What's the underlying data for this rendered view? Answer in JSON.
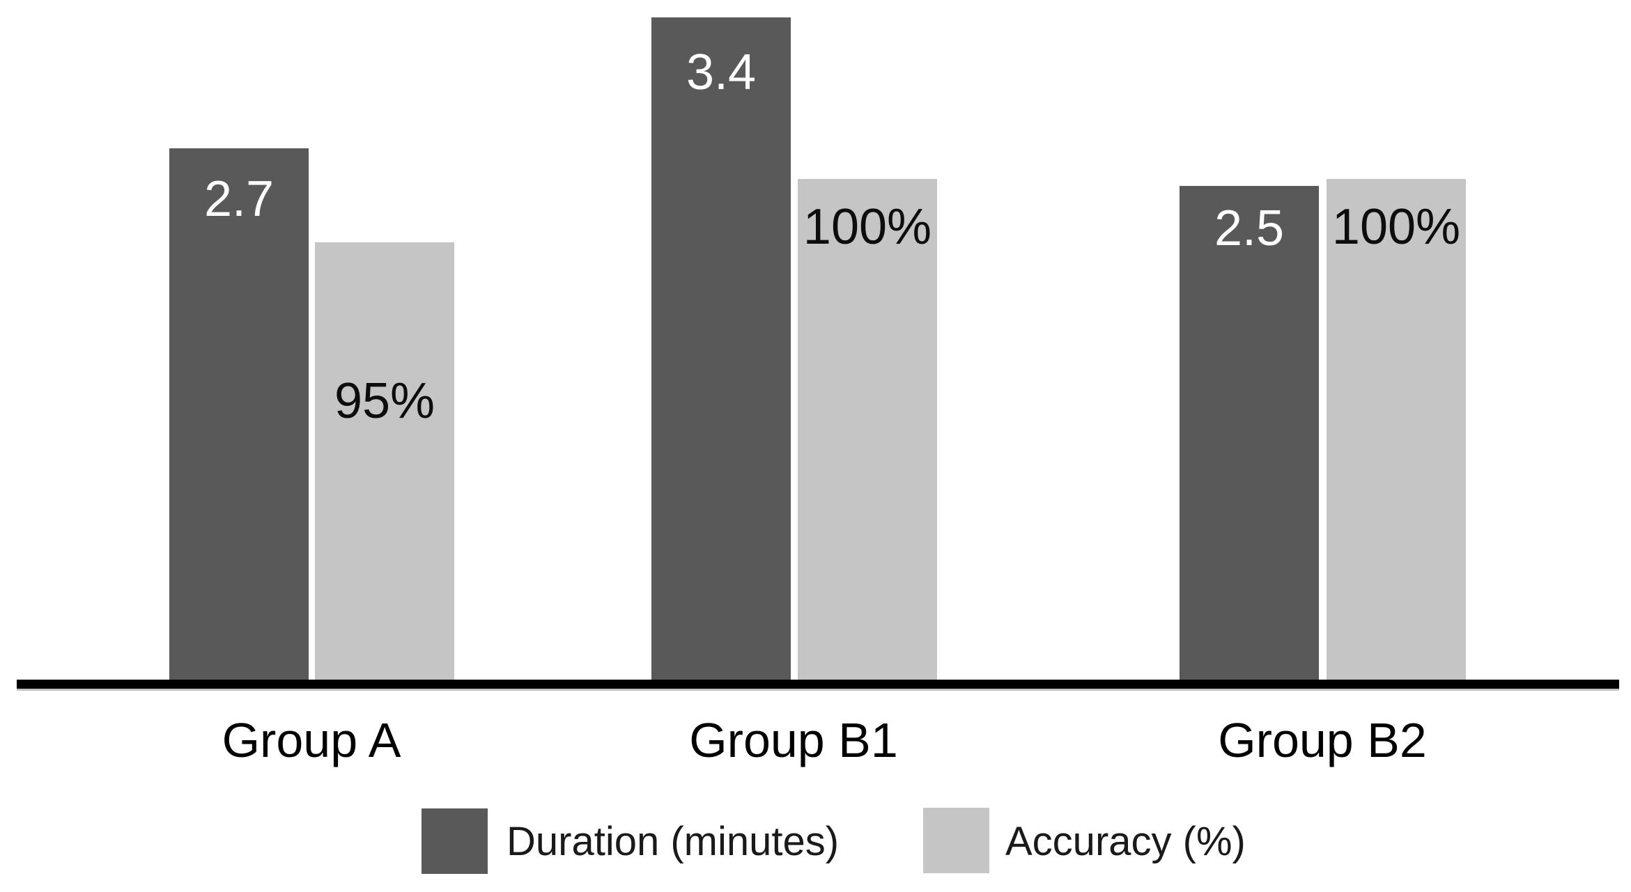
{
  "chart_data": {
    "type": "bar",
    "categories": [
      "Group A",
      "Group B1",
      "Group B2"
    ],
    "series": [
      {
        "name": "Duration (minutes)",
        "values": [
          2.7,
          3.4,
          2.5
        ],
        "labels": [
          "2.7",
          "3.4",
          "2.5"
        ],
        "color": "#595959",
        "label_color": "#ffffff",
        "label_dy": [
          37,
          43,
          25
        ]
      },
      {
        "name": "Accuracy (%)",
        "values": [
          95,
          100,
          100
        ],
        "labels": [
          "95%",
          "100%",
          "100%"
        ],
        "color": "#c5c5c5",
        "label_color": "#0d0d0d",
        "label_dy": [
          192,
          33,
          33
        ]
      }
    ],
    "title": "",
    "xlabel": "",
    "ylabel": "",
    "axis": {
      "ylim_left": [
        0,
        3.5
      ],
      "y_axis_visible": false,
      "x_axis_visible": true,
      "gridlines": false,
      "baseline_color": "#000000"
    },
    "legend": {
      "position": "bottom",
      "entries": [
        "Duration (minutes)",
        "Accuracy (%)"
      ]
    }
  }
}
